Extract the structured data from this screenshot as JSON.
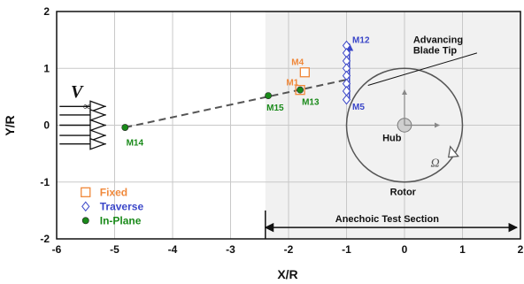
{
  "chart_data": {
    "type": "scatter",
    "xlabel": "X/R",
    "ylabel": "Y/R",
    "xlim": [
      -6,
      2
    ],
    "ylim": [
      -2,
      2
    ],
    "x_ticks": [
      "-6",
      "-5",
      "-4",
      "-3",
      "-2",
      "-1",
      "0",
      "1",
      "2"
    ],
    "y_ticks": [
      "-2",
      "-1",
      "0",
      "1",
      "2"
    ],
    "grid": true,
    "legend_position": "bottom-left",
    "series": [
      {
        "name": "Fixed",
        "marker": "square-open",
        "color": "#f0883a",
        "points": [
          {
            "x": -1.72,
            "y": 0.93
          }
        ]
      },
      {
        "name": "Traverse",
        "marker": "diamond-open",
        "color": "#3a46c8",
        "points": [
          {
            "x": -1.0,
            "y": 1.4
          },
          {
            "x": -1.0,
            "y": 1.27
          },
          {
            "x": -1.0,
            "y": 1.13
          },
          {
            "x": -1.0,
            "y": 1.0
          },
          {
            "x": -1.0,
            "y": 0.87
          },
          {
            "x": -1.0,
            "y": 0.73
          },
          {
            "x": -1.0,
            "y": 0.6
          },
          {
            "x": -1.0,
            "y": 0.45
          }
        ]
      },
      {
        "name": "In-Plane",
        "marker": "circle-filled",
        "color": "#1a8a1a",
        "points": [
          {
            "x": -4.82,
            "y": -0.04
          },
          {
            "x": -2.35,
            "y": 0.52
          },
          {
            "x": -1.8,
            "y": 0.62
          }
        ]
      }
    ],
    "point_labels": [
      {
        "text": "M4",
        "x": -1.95,
        "y": 1.06,
        "color": "#f0883a"
      },
      {
        "text": "M1",
        "x": -2.04,
        "y": 0.7,
        "color": "#f0883a"
      },
      {
        "text": "M13",
        "x": -1.77,
        "y": 0.36,
        "color": "#1a8a1a"
      },
      {
        "text": "M15",
        "x": -2.38,
        "y": 0.26,
        "color": "#1a8a1a"
      },
      {
        "text": "M14",
        "x": -4.8,
        "y": -0.36,
        "color": "#1a8a1a"
      },
      {
        "text": "M12",
        "x": -0.9,
        "y": 1.45,
        "color": "#3a46c8"
      },
      {
        "text": "M5",
        "x": -0.9,
        "y": 0.27,
        "color": "#3a46c8"
      }
    ],
    "annotations": {
      "blade_tip": "Advancing\nBlade Tip",
      "hub": "Hub",
      "rotor": "Rotor",
      "omega": "Ω",
      "test_section": "Anechoic Test Section",
      "freestream": "V∞"
    },
    "geometry_data": {
      "rotor_center": [
        0,
        0
      ],
      "rotor_radius": 1.0,
      "hub_radius": 0.12,
      "test_section_start_x": -2.4,
      "test_section_end_x": 2.0,
      "dashed_line_from": [
        -4.82,
        -0.04
      ],
      "dashed_line_to": [
        -1.0,
        0.8
      ],
      "traverse_arrow_x": -0.95,
      "traverse_arrow_y": [
        0.45,
        1.4
      ]
    }
  },
  "colors": {
    "fixed": "#f0883a",
    "traverse": "#3a46c8",
    "in_plane": "#1a8a1a",
    "test_section_fill": "#f1f1f1",
    "grid": "#c8c8c8"
  }
}
